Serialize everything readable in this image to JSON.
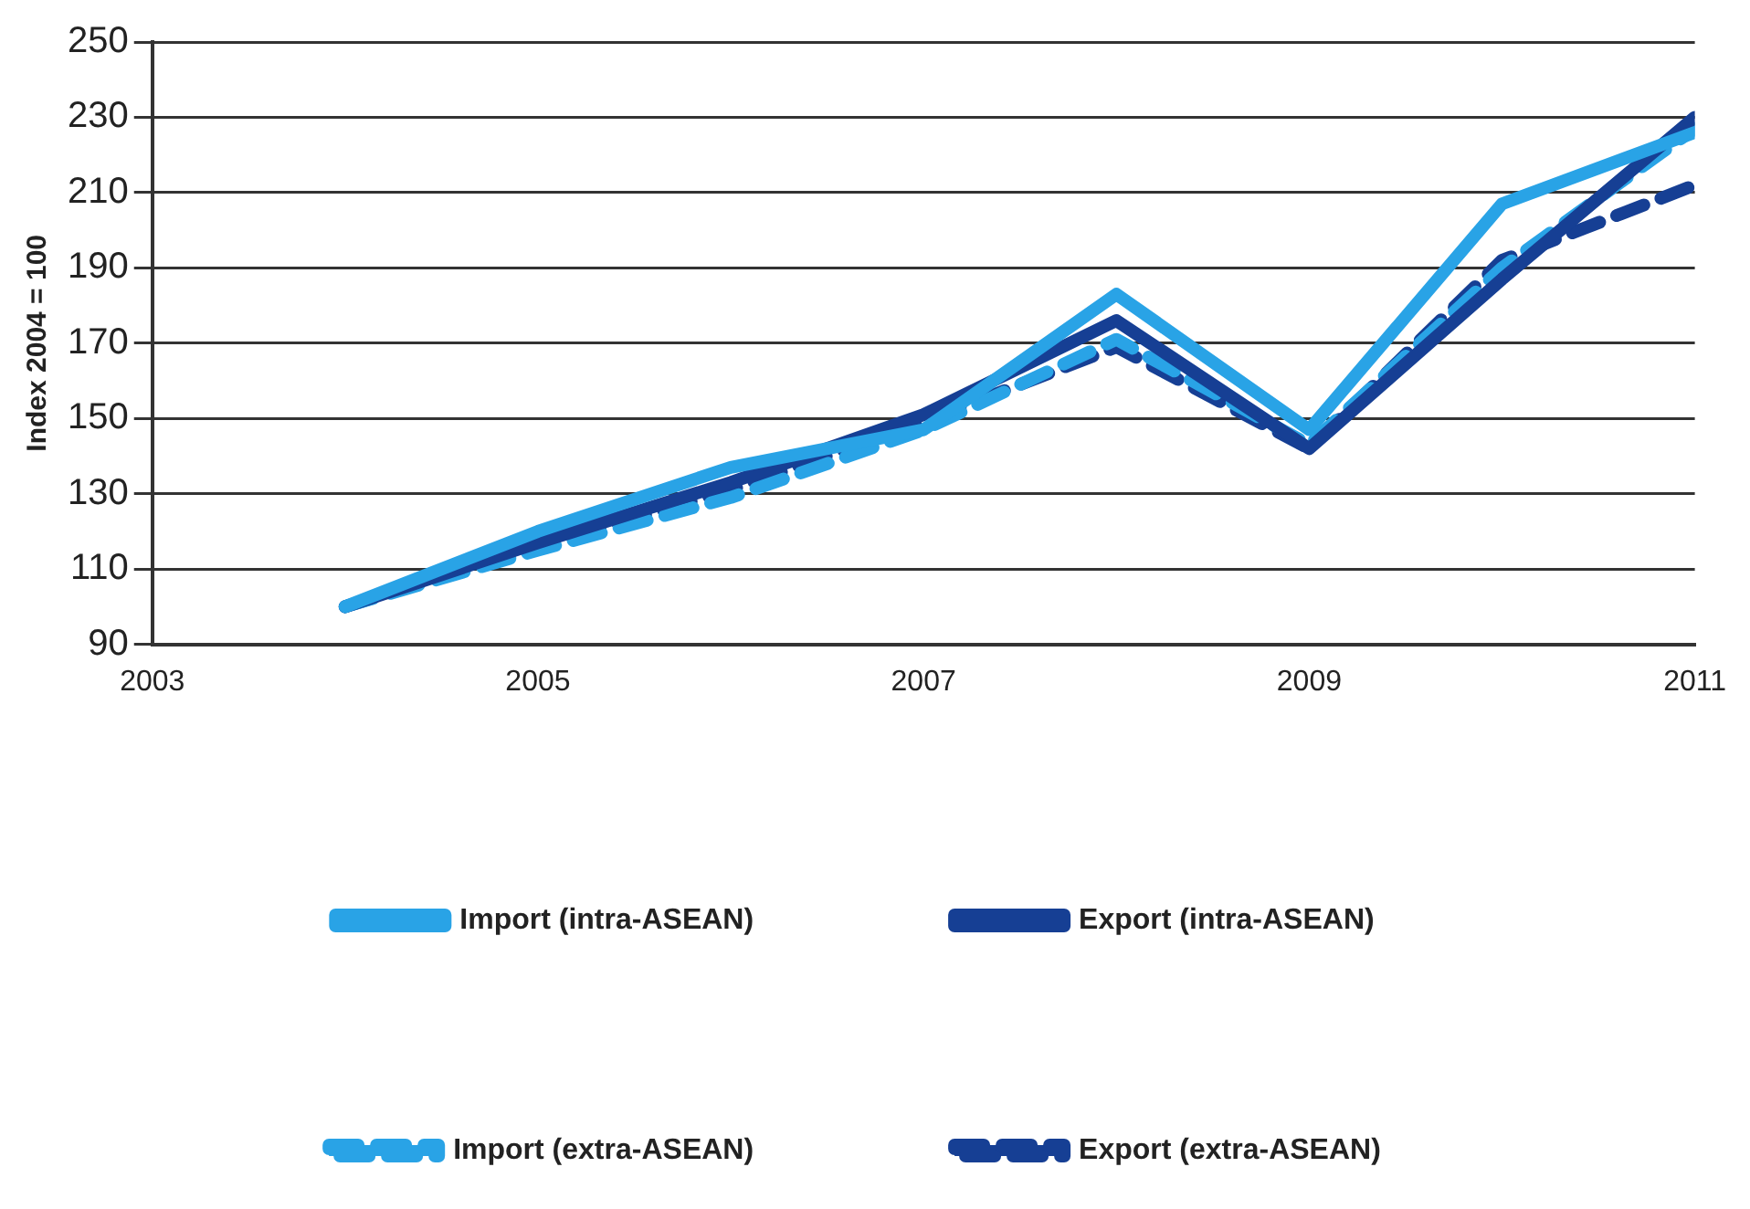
{
  "chart_data": {
    "type": "line",
    "ylabel": "Index 2004 = 100",
    "x": [
      2004,
      2005,
      2006,
      2007,
      2008,
      2009,
      2010,
      2011
    ],
    "xlim": [
      2003,
      2011
    ],
    "xticks": [
      2003,
      2005,
      2007,
      2009,
      2011
    ],
    "ylim": [
      90,
      250
    ],
    "yticks": [
      90,
      110,
      130,
      150,
      170,
      190,
      210,
      230,
      250
    ],
    "grid": "y",
    "legend": "bottom",
    "marker": "none",
    "series": [
      {
        "name": "Import (intra-ASEAN)",
        "color": "#29a3e6",
        "line_style": "solid",
        "values": [
          100,
          120,
          137,
          147,
          183,
          147,
          207,
          226
        ]
      },
      {
        "name": "Export (intra-ASEAN)",
        "color": "#163f94",
        "line_style": "solid",
        "values": [
          100,
          117,
          133,
          151,
          176,
          142,
          187,
          230
        ]
      },
      {
        "name": "Import (extra-ASEAN)",
        "color": "#29a3e6",
        "line_style": "dashed",
        "values": [
          100,
          115,
          129,
          147,
          171,
          143,
          190,
          227
        ]
      },
      {
        "name": "Export (extra-ASEAN)",
        "color": "#163f94",
        "line_style": "dashed",
        "values": [
          100,
          116,
          131,
          149,
          169,
          142,
          192,
          212
        ]
      }
    ]
  }
}
